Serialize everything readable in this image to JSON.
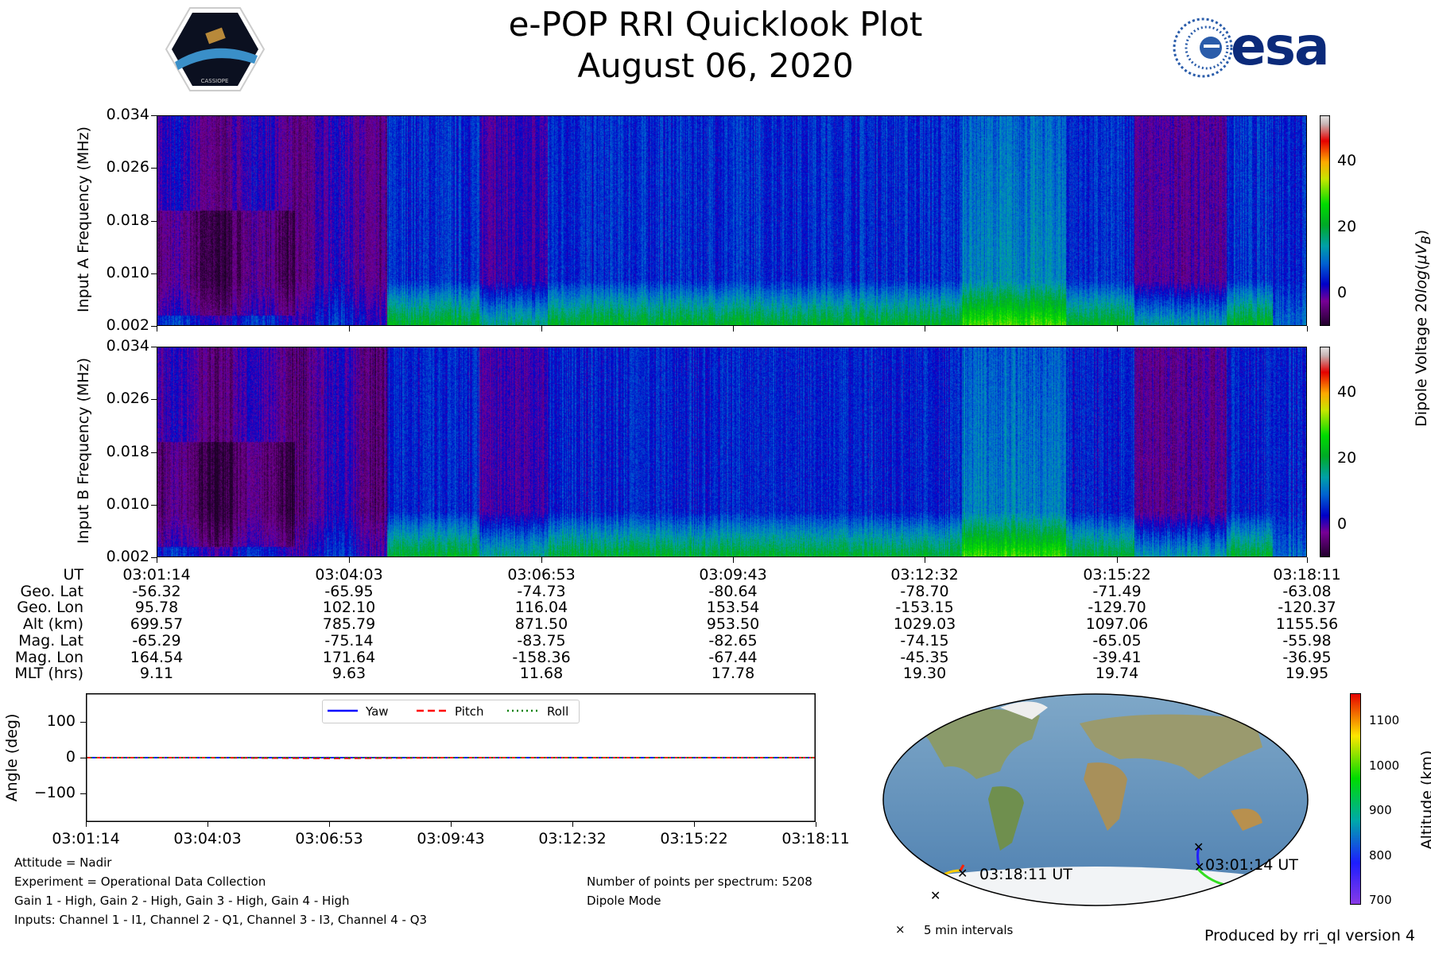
{
  "header": {
    "title": "e-POP RRI Quicklook Plot",
    "date": "August 06, 2020",
    "logo_left_text": "CASSIOPE",
    "logo_right_text": "esa"
  },
  "chart_data": [
    {
      "type": "heatmap",
      "name": "Input A",
      "ylabel": "Input A Frequency (MHz)",
      "yticks": [
        "0.034",
        "0.026",
        "0.018",
        "0.010",
        "0.002"
      ],
      "ylim": [
        0.002,
        0.034
      ]
    },
    {
      "type": "heatmap",
      "name": "Input B",
      "ylabel": "Input B Frequency (MHz)",
      "yticks": [
        "0.034",
        "0.026",
        "0.018",
        "0.010",
        "0.002"
      ],
      "ylim": [
        0.002,
        0.034
      ]
    },
    {
      "type": "colorbar",
      "label": "Dipole Voltage 20log(µV_B)",
      "ticks": [
        "40",
        "20",
        "0"
      ],
      "range": [
        -10,
        54
      ]
    },
    {
      "type": "line",
      "title": "Attitude",
      "ylabel": "Angle (deg)",
      "yticks": [
        "100",
        "0",
        "−100"
      ],
      "ylim": [
        -180,
        180
      ],
      "xticks": [
        "03:01:14",
        "03:04:03",
        "03:06:53",
        "03:09:43",
        "03:12:32",
        "03:15:22",
        "03:18:11"
      ],
      "series": [
        {
          "name": "Yaw",
          "color": "#0000ff",
          "style": "solid",
          "values": [
            0,
            0,
            0,
            0,
            0,
            0,
            0
          ]
        },
        {
          "name": "Pitch",
          "color": "#ff0000",
          "style": "dashed",
          "values": [
            0,
            0,
            -2,
            0,
            0,
            0,
            0
          ]
        },
        {
          "name": "Roll",
          "color": "#008000",
          "style": "dotted",
          "values": [
            0,
            0,
            0,
            0,
            0,
            0,
            0
          ]
        }
      ]
    },
    {
      "type": "colorbar",
      "label": "Altitude (km)",
      "ticks": [
        "1100",
        "1000",
        "900",
        "800",
        "700"
      ],
      "range": [
        690,
        1160
      ]
    }
  ],
  "table": {
    "row_labels": [
      "UT",
      "Geo. Lat",
      "Geo. Lon",
      "Alt (km)",
      "Mag. Lat",
      "Mag. Lon",
      "MLT (hrs)"
    ],
    "columns": [
      [
        "03:01:14",
        "-56.32",
        "95.78",
        "699.57",
        "-65.29",
        "164.54",
        "9.11"
      ],
      [
        "03:04:03",
        "-65.95",
        "102.10",
        "785.79",
        "-75.14",
        "171.64",
        "9.63"
      ],
      [
        "03:06:53",
        "-74.73",
        "116.04",
        "871.50",
        "-83.75",
        "-158.36",
        "11.68"
      ],
      [
        "03:09:43",
        "-80.64",
        "153.54",
        "953.50",
        "-82.65",
        "-67.44",
        "17.78"
      ],
      [
        "03:12:32",
        "-78.70",
        "-153.15",
        "1029.03",
        "-74.15",
        "-45.35",
        "19.30"
      ],
      [
        "03:15:22",
        "-71.49",
        "-129.70",
        "1097.06",
        "-65.05",
        "-39.41",
        "19.74"
      ],
      [
        "03:18:11",
        "-63.08",
        "-120.37",
        "1155.56",
        "-55.98",
        "-36.95",
        "19.95"
      ]
    ]
  },
  "info": {
    "left": [
      "Attitude = Nadir",
      "Experiment = Operational Data Collection",
      "Gain 1 - High, Gain 2 - High, Gain 3 - High, Gain 4 - High",
      "Inputs: Channel 1 - I1, Channel 2 - Q1, Channel 3 - I3, Channel 4 - Q3"
    ],
    "right": [
      "Number of points per spectrum: 5208",
      "Dipole Mode"
    ]
  },
  "map": {
    "start_label": "03:01:14 UT",
    "end_label": "03:18:11 UT",
    "legend": "5 min intervals"
  },
  "footer": "Produced by rri_ql version 4"
}
